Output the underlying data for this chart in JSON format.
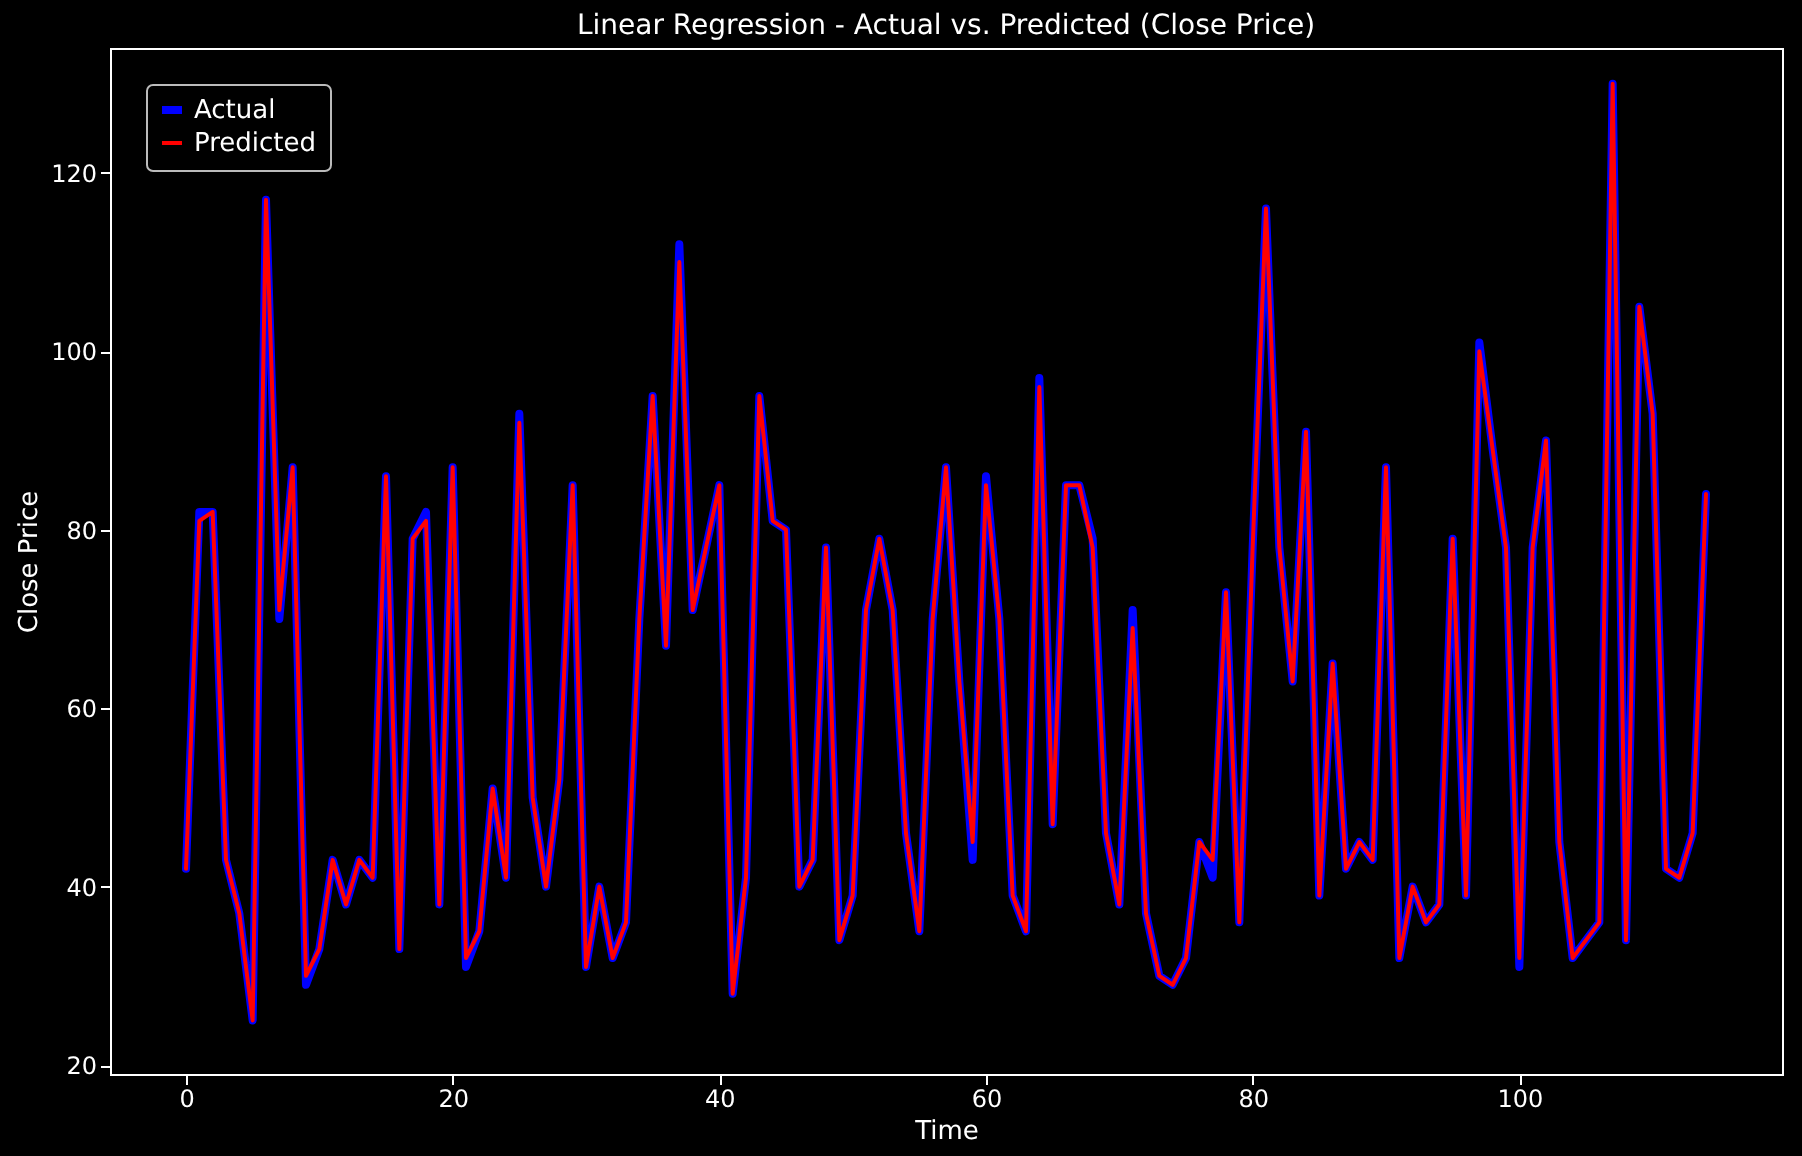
{
  "chart_data": {
    "type": "line",
    "title": "Linear Regression - Actual vs. Predicted (Close Price)",
    "xlabel": "Time",
    "ylabel": "Close Price",
    "x": [
      0,
      1,
      2,
      3,
      4,
      5,
      6,
      7,
      8,
      9,
      10,
      11,
      12,
      13,
      14,
      15,
      16,
      17,
      18,
      19,
      20,
      21,
      22,
      23,
      24,
      25,
      26,
      27,
      28,
      29,
      30,
      31,
      32,
      33,
      34,
      35,
      36,
      37,
      38,
      39,
      40,
      41,
      42,
      43,
      44,
      45,
      46,
      47,
      48,
      49,
      50,
      51,
      52,
      53,
      54,
      55,
      56,
      57,
      58,
      59,
      60,
      61,
      62,
      63,
      64,
      65,
      66,
      67,
      68,
      69,
      70,
      71,
      72,
      73,
      74,
      75,
      76,
      77,
      78,
      79,
      80,
      81,
      82,
      83,
      84,
      85,
      86,
      87,
      88,
      89,
      90,
      91,
      92,
      93,
      94,
      95,
      96,
      97,
      98,
      99,
      100,
      101,
      102,
      103,
      104,
      105,
      106,
      107,
      108,
      109,
      110,
      111,
      112,
      113,
      114
    ],
    "series": [
      {
        "name": "Actual",
        "color": "#0000ff",
        "values": [
          42,
          82,
          82,
          43,
          37,
          25,
          117,
          70,
          87,
          29,
          33,
          43,
          38,
          43,
          41,
          86,
          33,
          79,
          82,
          38,
          87,
          31,
          35,
          51,
          41,
          93,
          50,
          40,
          52,
          85,
          31,
          40,
          32,
          36,
          70,
          95,
          67,
          112,
          71,
          78,
          85,
          28,
          41,
          95,
          81,
          80,
          40,
          43,
          78,
          34,
          39,
          71,
          79,
          71,
          46,
          35,
          70,
          87,
          63,
          43,
          86,
          70,
          39,
          35,
          97,
          47,
          85,
          85,
          79,
          46,
          38,
          71,
          37,
          30,
          29,
          32,
          45,
          41,
          73,
          36,
          78,
          116,
          78,
          63,
          91,
          39,
          65,
          42,
          45,
          43,
          87,
          32,
          40,
          36,
          38,
          79,
          39,
          101,
          89,
          78,
          31,
          78,
          90,
          45,
          32,
          34,
          36,
          130,
          34,
          105,
          93,
          42,
          41,
          46,
          84
        ]
      },
      {
        "name": "Predicted",
        "color": "#ff0000",
        "values": [
          42,
          81,
          82,
          43,
          37,
          25,
          117,
          71,
          87,
          30,
          33,
          43,
          38,
          43,
          41,
          86,
          33,
          79,
          81,
          38,
          87,
          32,
          35,
          51,
          41,
          92,
          50,
          40,
          52,
          85,
          31,
          40,
          32,
          36,
          70,
          95,
          67,
          110,
          71,
          78,
          85,
          28,
          41,
          95,
          81,
          80,
          40,
          43,
          78,
          34,
          39,
          71,
          79,
          71,
          46,
          35,
          70,
          87,
          63,
          45,
          85,
          70,
          39,
          35,
          96,
          47,
          85,
          85,
          78,
          46,
          38,
          69,
          37,
          30,
          29,
          32,
          45,
          43,
          73,
          36,
          78,
          116,
          78,
          63,
          91,
          39,
          65,
          42,
          45,
          43,
          87,
          32,
          40,
          36,
          38,
          79,
          39,
          100,
          89,
          78,
          32,
          78,
          90,
          45,
          32,
          34,
          36,
          130,
          34,
          105,
          93,
          42,
          41,
          46,
          84
        ]
      }
    ],
    "xlim": [
      -5.7,
      119.7
    ],
    "ylim": [
      19,
      134
    ],
    "xticks": [
      0,
      20,
      40,
      60,
      80,
      100
    ],
    "yticks": [
      20,
      40,
      60,
      80,
      100,
      120
    ],
    "legend": "top left",
    "grid": false,
    "marker": "none",
    "line_style": "solid"
  }
}
